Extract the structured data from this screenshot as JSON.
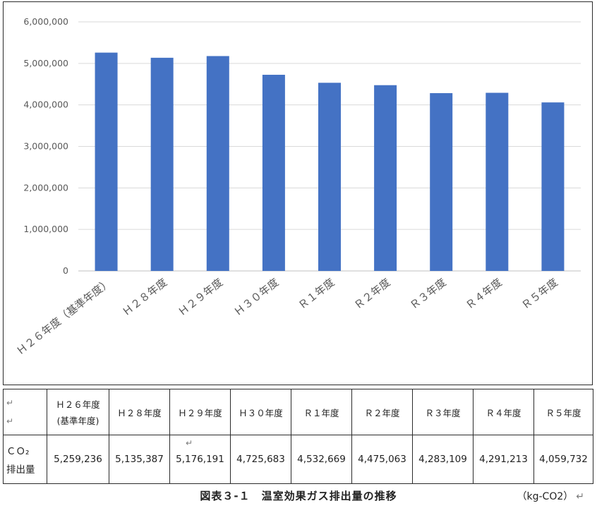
{
  "chart_data": {
    "type": "bar",
    "categories": [
      "Ｈ２６年度（基準年度）",
      "Ｈ２８年度",
      "Ｈ２９年度",
      "Ｈ３０年度",
      "Ｒ１年度",
      "Ｒ２年度",
      "Ｒ３年度",
      "Ｒ４年度",
      "Ｒ５年度"
    ],
    "values": [
      5259236,
      5135387,
      5176191,
      4725683,
      4532669,
      4475063,
      4283109,
      4291213,
      4059732
    ],
    "yticks": [
      "0",
      "1,000,000",
      "2,000,000",
      "3,000,000",
      "4,000,000",
      "5,000,000",
      "6,000,000"
    ],
    "ylim": [
      0,
      6000000
    ],
    "grid": true,
    "legend": "none",
    "bar_color": "#4472C4"
  },
  "table": {
    "headers": [
      [
        "Ｈ２６年度",
        "(基準年度)"
      ],
      [
        "Ｈ２８年度"
      ],
      [
        "Ｈ２９年度"
      ],
      [
        "Ｈ３０年度"
      ],
      [
        "Ｒ１年度"
      ],
      [
        "Ｒ２年度"
      ],
      [
        "Ｒ３年度"
      ],
      [
        "Ｒ４年度"
      ],
      [
        "Ｒ５年度"
      ]
    ],
    "row_label": [
      "ＣＯ₂",
      "排出量"
    ],
    "values": [
      "5,259,236",
      "5,135,387",
      "5,176,191",
      "4,725,683",
      "4,532,669",
      "4,475,063",
      "4,283,109",
      "4,291,213",
      "4,059,732"
    ],
    "return_mark": "↵"
  },
  "caption": {
    "title": "図表３-１　温室効果ガス排出量の推移",
    "unit": "（kg-CO2）",
    "return_mark": "↵"
  }
}
